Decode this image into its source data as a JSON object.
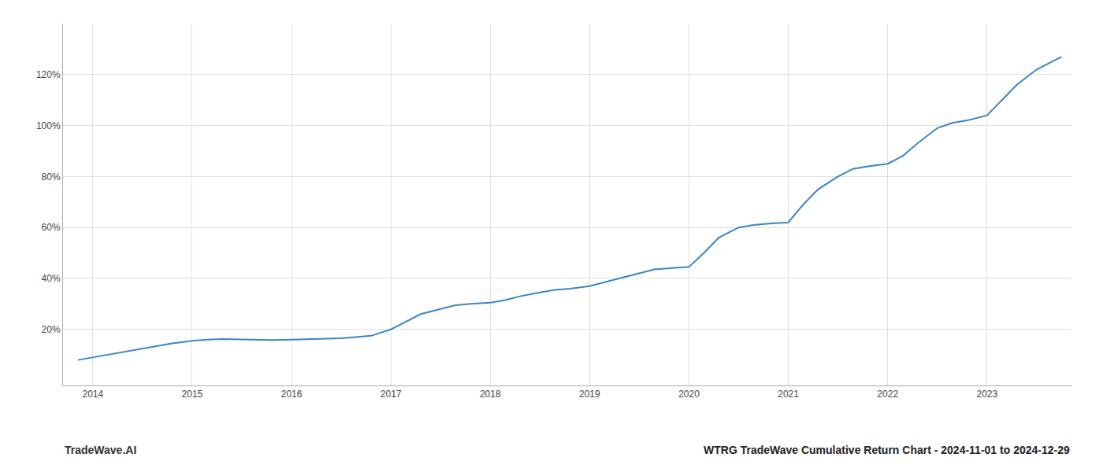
{
  "chart_data": {
    "type": "line",
    "title": "WTRG TradeWave Cumulative Return Chart - 2024-11-01 to 2024-12-29",
    "annotations": [
      "TradeWave.AI"
    ],
    "x": [
      2013.85,
      2014.0,
      2014.15,
      2014.3,
      2014.5,
      2014.65,
      2014.8,
      2015.0,
      2015.15,
      2015.3,
      2015.5,
      2015.65,
      2015.8,
      2016.0,
      2016.15,
      2016.3,
      2016.5,
      2016.65,
      2016.8,
      2017.0,
      2017.15,
      2017.3,
      2017.5,
      2017.65,
      2017.8,
      2018.0,
      2018.15,
      2018.3,
      2018.5,
      2018.65,
      2018.8,
      2019.0,
      2019.15,
      2019.3,
      2019.5,
      2019.65,
      2019.8,
      2020.0,
      2020.15,
      2020.3,
      2020.5,
      2020.65,
      2020.8,
      2021.0,
      2021.15,
      2021.3,
      2021.5,
      2021.65,
      2021.8,
      2022.0,
      2022.15,
      2022.3,
      2022.5,
      2022.65,
      2022.8,
      2023.0,
      2023.15,
      2023.3,
      2023.5,
      2023.65,
      2023.75
    ],
    "values": [
      8,
      9,
      10,
      11,
      12.5,
      13.5,
      14.5,
      15.5,
      16,
      16.2,
      16,
      15.8,
      15.8,
      16,
      16.2,
      16.3,
      16.5,
      17,
      17.5,
      20,
      23,
      26,
      28,
      29.5,
      30,
      30.5,
      31.5,
      33,
      34.5,
      35.5,
      36,
      37,
      38.5,
      40,
      42,
      43.5,
      44,
      44.5,
      50,
      56,
      60,
      61,
      61.5,
      62,
      69,
      75,
      80,
      83,
      84,
      85,
      88,
      93,
      99,
      101,
      102,
      104,
      110,
      116,
      122,
      125,
      127
    ],
    "color": "#3a86c8",
    "xlim": [
      2013.7,
      2023.85
    ],
    "xticks": [
      2014,
      2015,
      2016,
      2017,
      2018,
      2019,
      2020,
      2021,
      2022,
      2023
    ],
    "ylim": [
      -2,
      140
    ],
    "yticks": [
      {
        "value": 20,
        "label": "20%"
      },
      {
        "value": 40,
        "label": "40%"
      },
      {
        "value": 60,
        "label": "60%"
      },
      {
        "value": 80,
        "label": "80%"
      },
      {
        "value": 100,
        "label": "100%"
      },
      {
        "value": 120,
        "label": "120%"
      }
    ],
    "grid": true
  }
}
